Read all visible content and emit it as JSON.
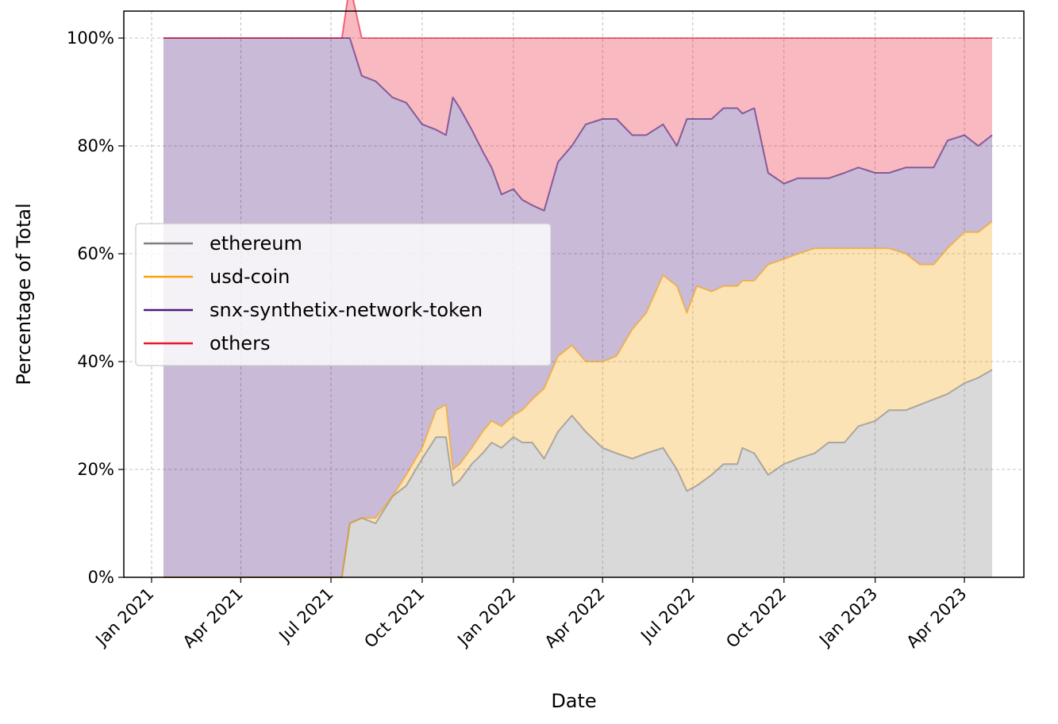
{
  "chart_data": {
    "type": "area",
    "stacked": true,
    "xlabel": "Date",
    "ylabel": "Percentage of Total",
    "xlim": [
      "2020-12-04",
      "2023-05-31"
    ],
    "ylim": [
      0,
      1.05
    ],
    "x_ticks": [
      {
        "date": "2021-01-01",
        "label": "Jan 2021"
      },
      {
        "date": "2021-04-01",
        "label": "Apr 2021"
      },
      {
        "date": "2021-07-01",
        "label": "Jul 2021"
      },
      {
        "date": "2021-10-01",
        "label": "Oct 2021"
      },
      {
        "date": "2022-01-01",
        "label": "Jan 2022"
      },
      {
        "date": "2022-04-01",
        "label": "Apr 2022"
      },
      {
        "date": "2022-07-01",
        "label": "Jul 2022"
      },
      {
        "date": "2022-10-01",
        "label": "Oct 2022"
      },
      {
        "date": "2023-01-01",
        "label": "Jan 2023"
      },
      {
        "date": "2023-04-01",
        "label": "Apr 2023"
      }
    ],
    "y_ticks": [
      {
        "value": 0,
        "label": "0%"
      },
      {
        "value": 0.2,
        "label": "20%"
      },
      {
        "value": 0.4,
        "label": "40%"
      },
      {
        "value": 0.6,
        "label": "60%"
      },
      {
        "value": 0.8,
        "label": "80%"
      },
      {
        "value": 1.0,
        "label": "100%"
      }
    ],
    "grid": true,
    "legend_position": "center-left",
    "x": [
      "2021-01-13",
      "2021-01-14",
      "2021-07-01",
      "2021-07-07",
      "2021-07-12",
      "2021-07-20",
      "2021-08-01",
      "2021-08-15",
      "2021-09-01",
      "2021-09-15",
      "2021-10-01",
      "2021-10-15",
      "2021-10-25",
      "2021-11-01",
      "2021-11-08",
      "2021-11-20",
      "2021-12-01",
      "2021-12-10",
      "2021-12-20",
      "2022-01-01",
      "2022-01-10",
      "2022-01-20",
      "2022-02-01",
      "2022-02-15",
      "2022-03-01",
      "2022-03-15",
      "2022-04-01",
      "2022-04-15",
      "2022-05-01",
      "2022-05-15",
      "2022-06-01",
      "2022-06-15",
      "2022-06-25",
      "2022-07-05",
      "2022-07-20",
      "2022-08-01",
      "2022-08-15",
      "2022-08-20",
      "2022-09-01",
      "2022-09-15",
      "2022-10-01",
      "2022-10-15",
      "2022-11-01",
      "2022-11-15",
      "2022-12-01",
      "2022-12-15",
      "2023-01-01",
      "2023-01-15",
      "2023-02-01",
      "2023-02-15",
      "2023-03-01",
      "2023-03-15",
      "2023-04-01",
      "2023-04-15",
      "2023-04-29"
    ],
    "series": [
      {
        "name": "ethereum",
        "color": "#808080",
        "values": [
          0,
          0,
          0,
          0,
          0,
          0.1,
          0.11,
          0.1,
          0.15,
          0.17,
          0.22,
          0.26,
          0.26,
          0.17,
          0.18,
          0.21,
          0.23,
          0.25,
          0.24,
          0.26,
          0.25,
          0.25,
          0.22,
          0.27,
          0.3,
          0.27,
          0.24,
          0.23,
          0.22,
          0.23,
          0.24,
          0.2,
          0.16,
          0.17,
          0.19,
          0.21,
          0.21,
          0.24,
          0.23,
          0.19,
          0.21,
          0.22,
          0.23,
          0.25,
          0.25,
          0.28,
          0.29,
          0.31,
          0.31,
          0.32,
          0.33,
          0.34,
          0.36,
          0.37,
          0.385
        ]
      },
      {
        "name": "usd-coin",
        "color": "#f5a20a",
        "values": [
          0,
          0,
          0,
          0,
          0,
          0,
          0,
          0.01,
          0,
          0.02,
          0.02,
          0.05,
          0.06,
          0.03,
          0.03,
          0.03,
          0.04,
          0.04,
          0.04,
          0.04,
          0.06,
          0.08,
          0.13,
          0.14,
          0.13,
          0.13,
          0.16,
          0.18,
          0.24,
          0.26,
          0.32,
          0.34,
          0.33,
          0.37,
          0.34,
          0.33,
          0.33,
          0.31,
          0.32,
          0.39,
          0.38,
          0.38,
          0.38,
          0.36,
          0.36,
          0.33,
          0.32,
          0.3,
          0.29,
          0.26,
          0.25,
          0.27,
          0.28,
          0.27,
          0.275
        ]
      },
      {
        "name": "snx-synthetix-network-token",
        "color": "#4b1a7a",
        "values": [
          1,
          1,
          1,
          1,
          1,
          0.9,
          0.82,
          0.81,
          0.74,
          0.69,
          0.6,
          0.52,
          0.5,
          0.69,
          0.66,
          0.59,
          0.52,
          0.47,
          0.43,
          0.42,
          0.39,
          0.36,
          0.33,
          0.36,
          0.37,
          0.44,
          0.45,
          0.44,
          0.36,
          0.33,
          0.28,
          0.26,
          0.36,
          0.31,
          0.32,
          0.33,
          0.33,
          0.31,
          0.32,
          0.17,
          0.14,
          0.14,
          0.13,
          0.13,
          0.14,
          0.15,
          0.14,
          0.14,
          0.16,
          0.18,
          0.18,
          0.2,
          0.18,
          0.16,
          0.16
        ]
      },
      {
        "name": "others",
        "color": "#e8182e",
        "values": [
          0,
          0,
          0,
          0,
          0,
          0.1,
          0.07,
          0.08,
          0.11,
          0.12,
          0.16,
          0.17,
          0.18,
          0.11,
          0.13,
          0.17,
          0.21,
          0.24,
          0.29,
          0.28,
          0.3,
          0.31,
          0.32,
          0.23,
          0.2,
          0.16,
          0.15,
          0.15,
          0.18,
          0.18,
          0.16,
          0.2,
          0.15,
          0.15,
          0.15,
          0.13,
          0.13,
          0.14,
          0.13,
          0.25,
          0.27,
          0.26,
          0.26,
          0.26,
          0.25,
          0.24,
          0.25,
          0.25,
          0.24,
          0.24,
          0.24,
          0.19,
          0.18,
          0.2,
          0.18
        ]
      }
    ]
  }
}
